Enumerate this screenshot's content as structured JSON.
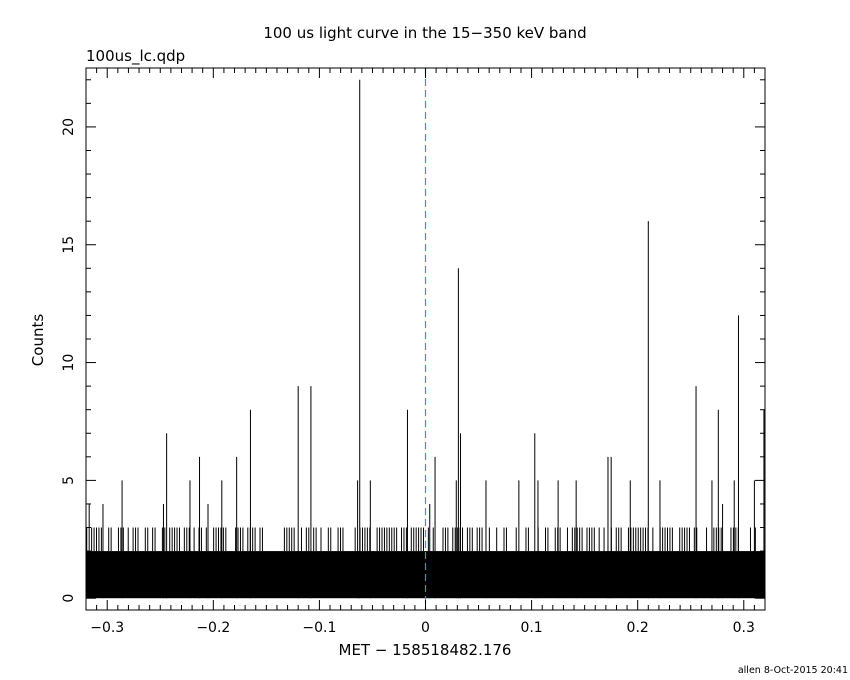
{
  "chart_data": {
    "type": "bar",
    "title": "100 us light curve in the 15−350 keV band",
    "subtitle": "100us_lc.qdp",
    "xlabel": "MET − 158518482.176",
    "ylabel": "Counts",
    "xlim": [
      -0.32,
      0.32
    ],
    "ylim": [
      -0.5,
      22.5
    ],
    "x_ticks": [
      -0.3,
      -0.2,
      -0.1,
      0,
      0.1,
      0.2,
      0.3
    ],
    "x_tick_labels": [
      "−0.3",
      "−0.2",
      "−0.1",
      "0",
      "0.1",
      "0.2",
      "0.3"
    ],
    "y_ticks": [
      0,
      5,
      10,
      15,
      20
    ],
    "y_tick_labels": [
      "0",
      "5",
      "10",
      "15",
      "20"
    ],
    "bin_width": 0.0001,
    "baseline_band": [
      0,
      2
    ],
    "reference_line_x": 0,
    "reference_line_color": "#3399cc",
    "footer": "allen  8-Oct-2015 20:41",
    "grid": false,
    "series": [
      {
        "x": [
          -0.317,
          -0.304,
          -0.286,
          -0.247,
          -0.244,
          -0.222,
          -0.213,
          -0.205,
          -0.192,
          -0.178,
          -0.165,
          -0.12,
          -0.108,
          -0.064,
          -0.062,
          -0.052,
          -0.017,
          0.004,
          0.009,
          0.029,
          0.031,
          0.033,
          0.057,
          0.088,
          0.103,
          0.106,
          0.125,
          0.142,
          0.172,
          0.175,
          0.193,
          0.21,
          0.221,
          0.255,
          0.27,
          0.276,
          0.28,
          0.291,
          0.295,
          0.31,
          0.319
        ],
        "values": [
          4,
          4,
          5,
          4,
          7,
          5,
          6,
          4,
          5,
          6,
          8,
          9,
          9,
          5,
          22,
          5,
          8,
          4,
          6,
          5,
          14,
          7,
          5,
          5,
          7,
          5,
          5,
          5,
          6,
          6,
          5,
          16,
          5,
          9,
          5,
          8,
          4,
          5,
          12,
          5,
          8
        ]
      }
    ]
  }
}
